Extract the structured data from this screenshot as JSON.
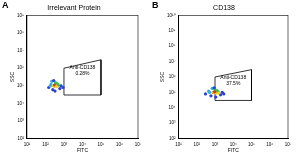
{
  "chart_data": [
    {
      "type": "scatter",
      "panel": "A",
      "title": "Irrelevant Protein",
      "x_label": "FITC",
      "y_label": "SSC",
      "log": true,
      "grid": false,
      "tick_labels": true,
      "xlim": [
        10,
        10000000
      ],
      "xticks": [
        {
          "value": 10,
          "label": "10¹"
        },
        {
          "value": 100,
          "label": "10²"
        },
        {
          "value": 1000,
          "label": "10³"
        },
        {
          "value": 10000,
          "label": "10⁴"
        },
        {
          "value": 100000,
          "label": "10⁵"
        },
        {
          "value": 1000000,
          "label": "10⁶"
        },
        {
          "value": 10000000,
          "label": "10⁷"
        }
      ],
      "ylim": [
        100,
        1000000000
      ],
      "yticks": [
        {
          "value": 100,
          "label": "10²"
        },
        {
          "value": 1000,
          "label": "10³"
        },
        {
          "value": 10000,
          "label": "10⁴"
        },
        {
          "value": 100000,
          "label": "10⁵"
        },
        {
          "value": 1000000,
          "label": "10⁶"
        },
        {
          "value": 10000000,
          "label": "10⁷"
        },
        {
          "value": 100000000,
          "label": "10⁸"
        },
        {
          "value": 1000000000,
          "label": "10⁹"
        }
      ],
      "series": [
        {
          "x": [
            150,
            200,
            250,
            300,
            350,
            400,
            500,
            600,
            220,
            280,
            330,
            450,
            260,
            310,
            380,
            180,
            700,
            900
          ],
          "values": [
            80000,
            120000,
            60000,
            100000,
            150000,
            90000,
            110000,
            70000,
            180000,
            200000,
            50000,
            130000,
            100000,
            110000,
            90000,
            100000,
            100000,
            80000
          ],
          "colors": [
            "#2a3fd6",
            "#2fb0e0",
            "#2a3fd6",
            "#e03020",
            "#3cc050",
            "#f0d020",
            "#3cc050",
            "#2a3fd6",
            "#2fb0e0",
            "#2a3fd6",
            "#2a3fd6",
            "#3cc050",
            "#f0d020",
            "#e03020",
            "#f0d020",
            "#2fb0e0",
            "#2a3fd6",
            "#2a3fd6"
          ]
        }
      ],
      "gate": {
        "x": [
          1000,
          1000,
          100000,
          100000,
          1000
        ],
        "y": [
          30000,
          1000000,
          3000000,
          30000,
          30000
        ]
      },
      "annotations": [
        "Anti-CD138",
        "0.28%"
      ]
    },
    {
      "type": "scatter",
      "panel": "B",
      "title": "CD138",
      "x_label": "FITC",
      "y_label": "SSC",
      "log": true,
      "grid": false,
      "tick_labels": true,
      "xlim": [
        10,
        10000000
      ],
      "xticks": [
        {
          "value": 10,
          "label": "10¹"
        },
        {
          "value": 100,
          "label": "10²"
        },
        {
          "value": 1000,
          "label": "10³"
        },
        {
          "value": 10000,
          "label": "10⁴"
        },
        {
          "value": 100000,
          "label": "10⁵"
        },
        {
          "value": 1000000,
          "label": "10⁶"
        },
        {
          "value": 10000000,
          "label": "10⁷"
        }
      ],
      "ylim": [
        100,
        10000000000
      ],
      "yticks": [
        {
          "value": 100,
          "label": "10²"
        },
        {
          "value": 1000,
          "label": "10³"
        },
        {
          "value": 10000,
          "label": "10⁴"
        },
        {
          "value": 100000,
          "label": "10⁵"
        },
        {
          "value": 1000000,
          "label": "10⁶"
        },
        {
          "value": 10000000,
          "label": "10⁷"
        },
        {
          "value": 100000000,
          "label": "10⁸"
        },
        {
          "value": 1000000000,
          "label": "10⁹"
        },
        {
          "value": 10000000000,
          "label": "10¹⁰"
        }
      ],
      "series": [
        {
          "x": [
            300,
            450,
            600,
            800,
            1000,
            1200,
            1500,
            2000,
            700,
            900,
            1100,
            1300,
            850,
            950,
            1600,
            500,
            2500,
            3000
          ],
          "values": [
            80000,
            120000,
            60000,
            100000,
            150000,
            90000,
            110000,
            70000,
            180000,
            200000,
            50000,
            130000,
            100000,
            110000,
            90000,
            100000,
            100000,
            80000
          ],
          "colors": [
            "#2a3fd6",
            "#2fb0e0",
            "#2a3fd6",
            "#e03020",
            "#3cc050",
            "#f0d020",
            "#3cc050",
            "#2a3fd6",
            "#2fb0e0",
            "#2a3fd6",
            "#2a3fd6",
            "#3cc050",
            "#f0d020",
            "#e03020",
            "#f0d020",
            "#2fb0e0",
            "#2a3fd6",
            "#2a3fd6"
          ]
        }
      ],
      "gate": {
        "x": [
          1000,
          1000,
          100000,
          100000,
          1000
        ],
        "y": [
          30000,
          1000000,
          3000000,
          30000,
          30000
        ]
      },
      "annotations": [
        "Anti-CD138",
        "37.5%"
      ]
    }
  ]
}
